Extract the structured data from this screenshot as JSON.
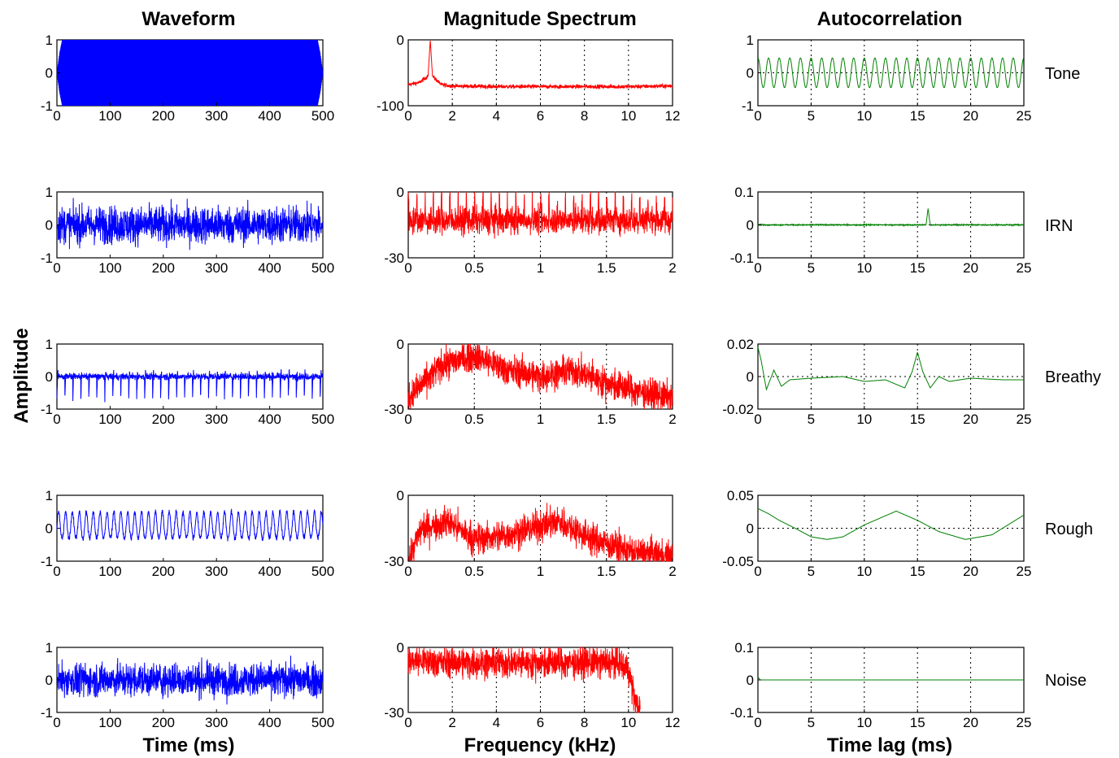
{
  "column_titles": [
    "Waveform",
    "Magnitude Spectrum",
    "Autocorrelation"
  ],
  "xlabels": [
    "Time (ms)",
    "Frequency (kHz)",
    "Time lag (ms)"
  ],
  "ylabel": "Amplitude",
  "row_labels": [
    "Tone",
    "IRN",
    "Breathy",
    "Rough",
    "Noise"
  ],
  "colors": {
    "waveform": "#0000ff",
    "spectrum": "#ff0000",
    "autocorrelation": "#008000"
  },
  "chart_data": [
    {
      "type": "line",
      "id": "tone-waveform",
      "row_label": "Tone",
      "column": "Waveform",
      "xlim": [
        0,
        500
      ],
      "ylim": [
        -1,
        1
      ],
      "xticks": [
        "0",
        "100",
        "200",
        "300",
        "400",
        "500"
      ],
      "yticks": [
        "1",
        "0",
        "-1"
      ],
      "grid": false,
      "description_of_shape": "dense 1 kHz sinusoid filling full amplitude range, ramped at onset/offset",
      "x": [
        0,
        5,
        10,
        250,
        490,
        495,
        500
      ],
      "y_envelope": [
        0,
        0.6,
        1,
        1,
        1,
        0.6,
        0
      ]
    },
    {
      "type": "line",
      "id": "tone-spectrum",
      "row_label": "Tone",
      "column": "Magnitude Spectrum",
      "xlim": [
        0,
        12
      ],
      "ylim": [
        -100,
        0
      ],
      "xticks": [
        "0",
        "2",
        "4",
        "6",
        "8",
        "10",
        "12"
      ],
      "yticks": [
        "0",
        "-100"
      ],
      "grid": true,
      "x": [
        0,
        0.5,
        0.9,
        1.0,
        1.1,
        1.5,
        2,
        4,
        6,
        8,
        10,
        12
      ],
      "y": [
        -68,
        -65,
        -55,
        0,
        -55,
        -68,
        -70,
        -71,
        -71,
        -71,
        -71,
        -70
      ]
    },
    {
      "type": "line",
      "id": "tone-autocorrelation",
      "row_label": "Tone",
      "column": "Autocorrelation",
      "xlim": [
        0,
        25
      ],
      "ylim": [
        -1,
        1
      ],
      "xticks": [
        "0",
        "5",
        "10",
        "15",
        "20",
        "25"
      ],
      "yticks": [
        "1",
        "0",
        "-1"
      ],
      "grid": true,
      "period_ms": 1.0,
      "amplitude": 0.45
    },
    {
      "type": "line",
      "id": "irn-waveform",
      "row_label": "IRN",
      "column": "Waveform",
      "xlim": [
        0,
        500
      ],
      "ylim": [
        -1,
        1
      ],
      "xticks": [
        "0",
        "100",
        "200",
        "300",
        "400",
        "500"
      ],
      "yticks": [
        "1",
        "0",
        "-1"
      ],
      "grid": false,
      "description_of_shape": "noise-like waveform, amplitude about +/-0.6 with peaks to +/-0.95"
    },
    {
      "type": "line",
      "id": "irn-spectrum",
      "row_label": "IRN",
      "column": "Magnitude Spectrum",
      "xlim": [
        0,
        2
      ],
      "ylim": [
        -30,
        0
      ],
      "xticks": [
        "0",
        "0.5",
        "1",
        "1.5",
        "2"
      ],
      "yticks": [
        "0",
        "-30"
      ],
      "grid": true,
      "description_of_shape": "comb-like spectrum with peaks every 62.5 Hz, mean about -10 dB",
      "peak_spacing_khz": 0.0625,
      "mean_db": -10
    },
    {
      "type": "line",
      "id": "irn-autocorrelation",
      "row_label": "IRN",
      "column": "Autocorrelation",
      "xlim": [
        0,
        25
      ],
      "ylim": [
        -0.1,
        0.1
      ],
      "xticks": [
        "0",
        "5",
        "10",
        "15",
        "20",
        "25"
      ],
      "yticks": [
        "0.1",
        "0",
        "-0.1"
      ],
      "grid": true,
      "x": [
        0,
        15.8,
        16,
        16.2,
        25
      ],
      "y": [
        0,
        0,
        0.05,
        0,
        0
      ]
    },
    {
      "type": "line",
      "id": "breathy-waveform",
      "row_label": "Breathy",
      "column": "Waveform",
      "xlim": [
        0,
        500
      ],
      "ylim": [
        -1,
        1
      ],
      "xticks": [
        "0",
        "100",
        "200",
        "300",
        "400",
        "500"
      ],
      "yticks": [
        "1",
        "0",
        "-1"
      ],
      "grid": false,
      "description_of_shape": "periodic pulses every ~15 ms reaching about -0.65, noise floor about +/-0.15",
      "pulse_period_ms": 15,
      "pulse_amplitude": -0.65
    },
    {
      "type": "line",
      "id": "breathy-spectrum",
      "row_label": "Breathy",
      "column": "Magnitude Spectrum",
      "xlim": [
        0,
        2
      ],
      "ylim": [
        -30,
        0
      ],
      "xticks": [
        "0",
        "0.5",
        "1",
        "1.5",
        "2"
      ],
      "yticks": [
        "0",
        "-30"
      ],
      "grid": true,
      "x": [
        0,
        0.25,
        0.5,
        0.75,
        1.0,
        1.25,
        1.5,
        1.75,
        2.0
      ],
      "y": [
        -25,
        -10,
        -5,
        -12,
        -15,
        -12,
        -18,
        -22,
        -25
      ]
    },
    {
      "type": "line",
      "id": "breathy-autocorrelation",
      "row_label": "Breathy",
      "column": "Autocorrelation",
      "xlim": [
        0,
        25
      ],
      "ylim": [
        -0.02,
        0.02
      ],
      "xticks": [
        "0",
        "5",
        "10",
        "15",
        "20",
        "25"
      ],
      "yticks": [
        "0.02",
        "0",
        "-0.02"
      ],
      "grid": true,
      "x": [
        0,
        0.3,
        0.8,
        1.5,
        2.2,
        3,
        5,
        8,
        10,
        12,
        13.8,
        14.5,
        15,
        15.5,
        16.2,
        17,
        18,
        20,
        23,
        25
      ],
      "y": [
        0.018,
        0.01,
        -0.008,
        0.004,
        -0.006,
        -0.002,
        -0.001,
        0.0,
        -0.003,
        -0.002,
        -0.007,
        0.003,
        0.015,
        0.003,
        -0.007,
        0.0,
        -0.003,
        -0.001,
        -0.002,
        -0.002
      ]
    },
    {
      "type": "line",
      "id": "rough-waveform",
      "row_label": "Rough",
      "column": "Waveform",
      "xlim": [
        0,
        500
      ],
      "ylim": [
        -1,
        1
      ],
      "xticks": [
        "0",
        "100",
        "200",
        "300",
        "400",
        "500"
      ],
      "yticks": [
        "1",
        "0",
        "-1"
      ],
      "grid": false,
      "description_of_shape": "periodic waveform, positive peaks about 0.55, negative about -0.3, period ~13 ms",
      "pulse_period_ms": 13
    },
    {
      "type": "line",
      "id": "rough-spectrum",
      "row_label": "Rough",
      "column": "Magnitude Spectrum",
      "xlim": [
        0,
        2
      ],
      "ylim": [
        -30,
        0
      ],
      "xticks": [
        "0",
        "0.5",
        "1",
        "1.5",
        "2"
      ],
      "yticks": [
        "0",
        "-30"
      ],
      "grid": true,
      "x": [
        0,
        0.1,
        0.3,
        0.5,
        0.75,
        1.0,
        1.15,
        1.4,
        1.7,
        2.0
      ],
      "y": [
        -30,
        -15,
        -12,
        -20,
        -18,
        -14,
        -12,
        -20,
        -26,
        -28
      ]
    },
    {
      "type": "line",
      "id": "rough-autocorrelation",
      "row_label": "Rough",
      "column": "Autocorrelation",
      "xlim": [
        0,
        25
      ],
      "ylim": [
        -0.05,
        0.05
      ],
      "xticks": [
        "0",
        "5",
        "10",
        "15",
        "20",
        "25"
      ],
      "yticks": [
        "0.05",
        "0",
        "-0.05"
      ],
      "grid": true,
      "x": [
        0,
        1,
        2,
        3.5,
        5,
        6.5,
        8,
        10,
        13,
        15,
        17,
        19.5,
        22,
        25
      ],
      "y": [
        0.03,
        0.022,
        0.012,
        0.0,
        -0.013,
        -0.017,
        -0.013,
        0.005,
        0.026,
        0.012,
        -0.005,
        -0.017,
        -0.01,
        0.02
      ]
    },
    {
      "type": "line",
      "id": "noise-waveform",
      "row_label": "Noise",
      "column": "Waveform",
      "xlim": [
        0,
        500
      ],
      "ylim": [
        -1,
        1
      ],
      "xticks": [
        "0",
        "100",
        "200",
        "300",
        "400",
        "500"
      ],
      "yticks": [
        "1",
        "0",
        "-1"
      ],
      "grid": false,
      "description_of_shape": "white noise, amplitude about +/-0.5 with peaks to +/-0.9"
    },
    {
      "type": "line",
      "id": "noise-spectrum",
      "row_label": "Noise",
      "column": "Magnitude Spectrum",
      "xlim": [
        0,
        12
      ],
      "ylim": [
        -30,
        0
      ],
      "xticks": [
        "0",
        "2",
        "4",
        "6",
        "8",
        "10",
        "12"
      ],
      "yticks": [
        "0",
        "-30"
      ],
      "grid": true,
      "x": [
        0,
        2,
        4,
        6,
        8,
        9.5,
        10,
        10.3,
        10.5
      ],
      "y": [
        -6,
        -7,
        -7,
        -7,
        -7,
        -7,
        -10,
        -25,
        -30
      ]
    },
    {
      "type": "line",
      "id": "noise-autocorrelation",
      "row_label": "Noise",
      "column": "Autocorrelation",
      "xlim": [
        0,
        25
      ],
      "ylim": [
        -0.1,
        0.1
      ],
      "xticks": [
        "0",
        "5",
        "10",
        "15",
        "20",
        "25"
      ],
      "yticks": [
        "0.1",
        "0",
        "-0.1"
      ],
      "grid": true,
      "x": [
        0,
        0.2,
        25
      ],
      "y": [
        0.01,
        0,
        0
      ]
    }
  ]
}
